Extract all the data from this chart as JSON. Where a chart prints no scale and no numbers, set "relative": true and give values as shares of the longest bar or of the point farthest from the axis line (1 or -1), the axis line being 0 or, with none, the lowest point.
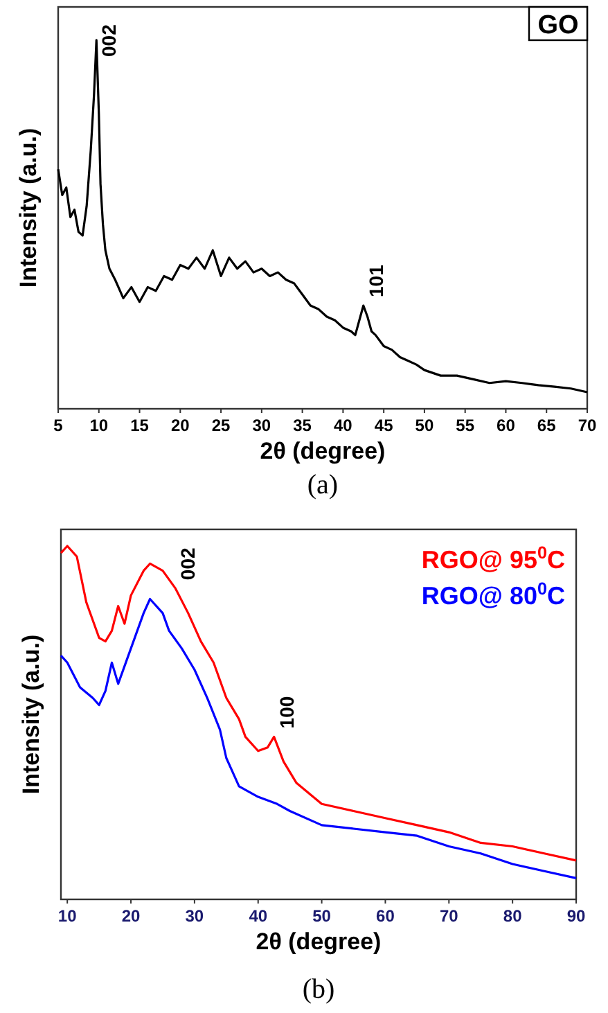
{
  "chart_data": [
    {
      "type": "line",
      "relative": true,
      "xlabel": "2θ (degree)",
      "ylabel": "Intensity (a.u.)",
      "xlim": [
        5,
        70
      ],
      "xticks": [
        5,
        10,
        15,
        20,
        25,
        30,
        35,
        40,
        45,
        50,
        55,
        60,
        65,
        70
      ],
      "tick_labels": "x",
      "marker": "none",
      "line_style": "solid",
      "legend": false,
      "annotations": [
        {
          "text": "002",
          "x": 9.7,
          "y": 1.0
        },
        {
          "text": "101",
          "x": 42.5,
          "y": 0.28
        },
        "GO",
        "(a)"
      ],
      "series": [
        {
          "color": "#000000",
          "x": [
            5,
            5.5,
            6,
            6.5,
            7,
            7.5,
            8,
            8.5,
            9,
            9.4,
            9.7,
            10,
            10.2,
            10.5,
            10.8,
            11.3,
            12,
            13,
            14,
            15,
            16,
            17,
            18,
            19,
            20,
            21,
            22,
            23,
            24,
            25,
            26,
            27,
            28,
            29,
            30,
            31,
            32,
            33,
            34,
            35,
            36,
            37,
            38,
            39,
            40,
            41,
            41.5,
            42,
            42.5,
            43,
            43.5,
            44,
            45,
            46,
            47,
            48,
            49,
            50,
            52,
            54,
            56,
            58,
            60,
            62,
            64,
            66,
            68,
            70
          ],
          "values": [
            0.65,
            0.58,
            0.6,
            0.52,
            0.54,
            0.48,
            0.47,
            0.55,
            0.7,
            0.85,
            1.0,
            0.8,
            0.61,
            0.5,
            0.43,
            0.38,
            0.35,
            0.3,
            0.33,
            0.29,
            0.33,
            0.32,
            0.36,
            0.35,
            0.39,
            0.38,
            0.41,
            0.38,
            0.43,
            0.36,
            0.41,
            0.38,
            0.4,
            0.37,
            0.38,
            0.36,
            0.37,
            0.35,
            0.34,
            0.31,
            0.28,
            0.27,
            0.25,
            0.24,
            0.22,
            0.21,
            0.2,
            0.24,
            0.28,
            0.25,
            0.21,
            0.2,
            0.17,
            0.16,
            0.14,
            0.13,
            0.12,
            0.105,
            0.09,
            0.09,
            0.08,
            0.07,
            0.075,
            0.07,
            0.064,
            0.06,
            0.055,
            0.045
          ]
        }
      ]
    },
    {
      "type": "line",
      "relative": true,
      "xlabel": "2θ (degree)",
      "ylabel": "Intensity (a.u.)",
      "xlim": [
        9,
        90
      ],
      "xticks": [
        10,
        20,
        30,
        40,
        50,
        60,
        70,
        80,
        90
      ],
      "tick_labels": "x",
      "marker": "none",
      "line_style": "solid",
      "legend": "top right",
      "annotations": [
        {
          "text": "002",
          "x": 27,
          "y": 0.88
        },
        {
          "text": "100",
          "x": 42.5,
          "y": 0.46
        },
        "(b)"
      ],
      "series": [
        {
          "name": "RGO@ 95$^{0}$C",
          "color": "#ff0000",
          "x": [
            9,
            10,
            11.5,
            13,
            15,
            16,
            17,
            18,
            19,
            20,
            22,
            23,
            25,
            27,
            29,
            31,
            33,
            35,
            37,
            38,
            40,
            41.5,
            42.5,
            44,
            46,
            50,
            55,
            60,
            65,
            70,
            75,
            80,
            85,
            90
          ],
          "values": [
            0.98,
            1.0,
            0.97,
            0.84,
            0.74,
            0.73,
            0.76,
            0.83,
            0.78,
            0.86,
            0.93,
            0.95,
            0.93,
            0.88,
            0.81,
            0.73,
            0.67,
            0.57,
            0.51,
            0.46,
            0.42,
            0.43,
            0.46,
            0.39,
            0.33,
            0.27,
            0.25,
            0.23,
            0.21,
            0.19,
            0.16,
            0.15,
            0.13,
            0.11
          ]
        },
        {
          "name": "RGO@ 80$^{0}$C",
          "color": "#0000ff",
          "x": [
            9,
            10,
            12,
            14,
            15,
            16,
            17,
            18,
            20,
            22,
            23,
            25,
            26,
            28,
            30,
            32,
            34,
            35,
            36,
            37,
            40,
            43,
            45,
            50,
            55,
            60,
            65,
            70,
            75,
            80,
            85,
            90
          ],
          "values": [
            0.69,
            0.67,
            0.6,
            0.57,
            0.55,
            0.59,
            0.67,
            0.61,
            0.71,
            0.81,
            0.85,
            0.81,
            0.76,
            0.71,
            0.65,
            0.57,
            0.48,
            0.4,
            0.36,
            0.32,
            0.29,
            0.27,
            0.25,
            0.21,
            0.2,
            0.19,
            0.18,
            0.15,
            0.13,
            0.1,
            0.08,
            0.06
          ]
        }
      ]
    }
  ]
}
